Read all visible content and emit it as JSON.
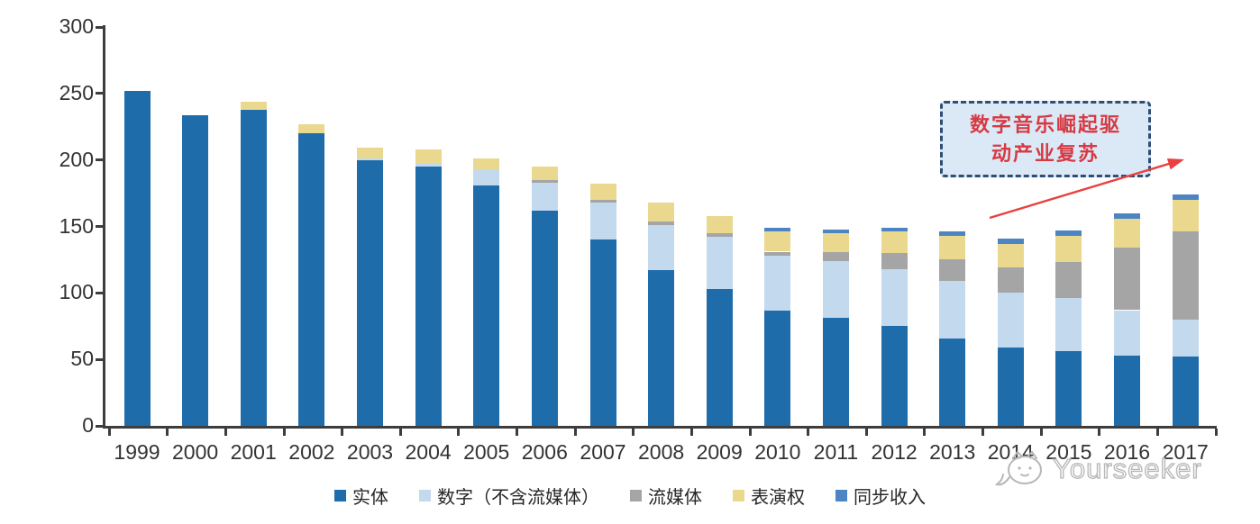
{
  "watermark": {
    "text": "Yourseeker",
    "color": "#b7b7b7",
    "icon": "cat-chat-logo-icon"
  },
  "annotation": {
    "line1": "数字音乐崛起驱",
    "line2": "动产业复苏",
    "text_color": "#d63a43",
    "box_fill": "#dbe9f7",
    "border_color": "#2e4e77",
    "arrow_color": "#e8413f"
  },
  "chart_data": {
    "type": "bar",
    "stacked": true,
    "grid": false,
    "legend_position": "bottom",
    "ylim": [
      0,
      300
    ],
    "yticks": [
      0,
      50,
      100,
      150,
      200,
      250,
      300
    ],
    "xlabel": "",
    "ylabel": "",
    "categories": [
      "1999",
      "2000",
      "2001",
      "2002",
      "2003",
      "2004",
      "2005",
      "2006",
      "2007",
      "2008",
      "2009",
      "2010",
      "2011",
      "2012",
      "2013",
      "2014",
      "2015",
      "2016",
      "2017"
    ],
    "series": [
      {
        "name": "实体",
        "color": "#1f6cab",
        "values": [
          252,
          234,
          238,
          220,
          200,
          195,
          181,
          162,
          140,
          117,
          103,
          87,
          81,
          75,
          66,
          59,
          56,
          53,
          52
        ]
      },
      {
        "name": "数字（不含流媒体）",
        "color": "#c2d9ee",
        "values": [
          0,
          0,
          0,
          0,
          1,
          3,
          12,
          21,
          28,
          34,
          39,
          41,
          43,
          43,
          43,
          41,
          40,
          34,
          28
        ]
      },
      {
        "name": "流媒体",
        "color": "#a5a5a5",
        "values": [
          0,
          0,
          0,
          0,
          0,
          0,
          0,
          2,
          2,
          3,
          3,
          3,
          7,
          12,
          16,
          19,
          27,
          47,
          66
        ]
      },
      {
        "name": "表演权",
        "color": "#ebd88f",
        "values": [
          0,
          0,
          6,
          7,
          8,
          10,
          8,
          10,
          12,
          14,
          13,
          15,
          14,
          16,
          18,
          18,
          20,
          22,
          24
        ]
      },
      {
        "name": "同步收入",
        "color": "#4d85c3",
        "values": [
          0,
          0,
          0,
          0,
          0,
          0,
          0,
          0,
          0,
          0,
          0,
          3,
          3,
          3,
          3,
          4,
          4,
          4,
          4
        ]
      }
    ],
    "totals": [
      252,
      234,
      244,
      227,
      209,
      208,
      201,
      195,
      182,
      168,
      158,
      149,
      148,
      149,
      146,
      141,
      147,
      160,
      174
    ]
  }
}
